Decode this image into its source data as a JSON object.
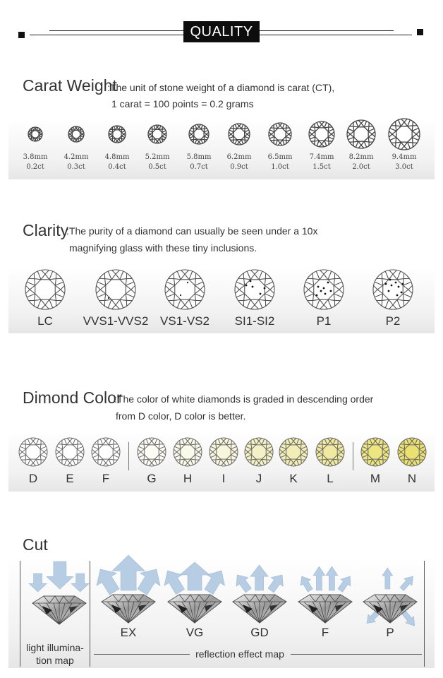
{
  "header": {
    "title": "QUALITY"
  },
  "carat": {
    "title": "Carat Weight",
    "desc1": ":The unit of stone weight of a diamond is carat (CT),",
    "desc2": "1 carat = 100 points = 0.2 grams",
    "items": [
      {
        "mm": "3.8mm",
        "ct": "0.2ct"
      },
      {
        "mm": "4.2mm",
        "ct": "0.3ct"
      },
      {
        "mm": "4.8mm",
        "ct": "0.4ct"
      },
      {
        "mm": "5.2mm",
        "ct": "0.5ct"
      },
      {
        "mm": "5.8mm",
        "ct": "0.7ct"
      },
      {
        "mm": "6.2mm",
        "ct": "0.9ct"
      },
      {
        "mm": "6.5mm",
        "ct": "1.0ct"
      },
      {
        "mm": "7.4mm",
        "ct": "1.5ct"
      },
      {
        "mm": "8.2mm",
        "ct": "2.0ct"
      },
      {
        "mm": "9.4mm",
        "ct": "3.0ct"
      }
    ]
  },
  "clarity": {
    "title": "Clarity",
    "desc1": ":The purity of a diamond can usually be seen under a 10x",
    "desc2": "magnifying glass with these tiny inclusions.",
    "grades": [
      "LC",
      "VVS1-VVS2",
      "VS1-VS2",
      "SI1-SI2",
      "P1",
      "P2"
    ]
  },
  "color": {
    "title": "Dimond Color",
    "desc1": ":The color of white diamonds is graded in descending order",
    "desc2": "from D color, D color is better.",
    "grades": [
      "D",
      "E",
      "F",
      "G",
      "H",
      "I",
      "J",
      "K",
      "L",
      "M",
      "N"
    ],
    "tints": [
      "#ffffff",
      "#ffffff",
      "#ffffff",
      "#fdfcf5",
      "#fbf9ea",
      "#f8f6dc",
      "#f5f1c6",
      "#f3eeb6",
      "#f0eaa0",
      "#ede580",
      "#ebe170"
    ]
  },
  "cut": {
    "title": "Cut",
    "grades": [
      "EX",
      "VG",
      "GD",
      "F",
      "P"
    ],
    "left_label_1": "light illumina-",
    "left_label_2": "tion map",
    "reflection_label": "reflection effect map",
    "arrow_color": "#b7cde4"
  }
}
